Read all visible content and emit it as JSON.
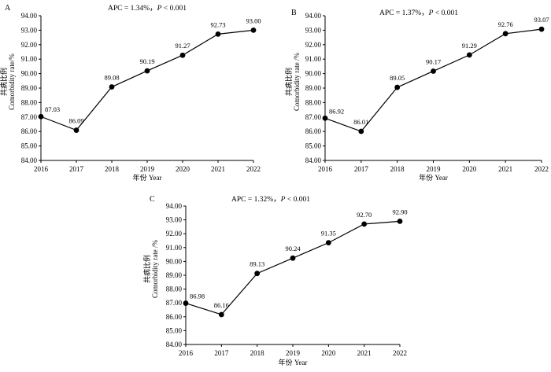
{
  "chart_data": [
    {
      "type": "line",
      "panel_label": "A",
      "title": "APC = 1.34%，",
      "title_p": "P",
      "title_tail": " < 0.001",
      "x": [
        "2016",
        "2017",
        "2018",
        "2019",
        "2020",
        "2021",
        "2022"
      ],
      "values": [
        87.03,
        86.09,
        89.08,
        90.19,
        91.27,
        92.73,
        93.0
      ],
      "value_labels": [
        "87.03",
        "86.09",
        "89.08",
        "90.19",
        "91.27",
        "92.73",
        "93.00"
      ],
      "ylim": [
        84.0,
        94.0
      ],
      "yticks": [
        "84.00",
        "85.00",
        "86.00",
        "87.00",
        "88.00",
        "89.00",
        "90.00",
        "91.00",
        "92.00",
        "93.00",
        "94.00"
      ],
      "xlabel": "年份 Year",
      "ylabel_cn": "共病比例",
      "ylabel_en": "Comorbidity rate/%",
      "grid": false,
      "marker": "circle"
    },
    {
      "type": "line",
      "panel_label": "B",
      "title": "APC = 1.37%，",
      "title_p": "P",
      "title_tail": " < 0.001",
      "x": [
        "2016",
        "2017",
        "2018",
        "2019",
        "2020",
        "2021",
        "2022"
      ],
      "values": [
        86.92,
        86.01,
        89.05,
        90.17,
        91.29,
        92.76,
        93.07
      ],
      "value_labels": [
        "86.92",
        "86.01",
        "89.05",
        "90.17",
        "91.29",
        "92.76",
        "93.07"
      ],
      "ylim": [
        84.0,
        94.0
      ],
      "yticks": [
        "84.00",
        "85.00",
        "86.00",
        "87.00",
        "88.00",
        "89.00",
        "90.00",
        "91.00",
        "92.00",
        "93.00",
        "94.00"
      ],
      "xlabel": "年份 Year",
      "ylabel_cn": "共病比例",
      "ylabel_en": "Comorbidity rate /%",
      "grid": false,
      "marker": "circle"
    },
    {
      "type": "line",
      "panel_label": "C",
      "title": "APC = 1.32%，",
      "title_p": "P",
      "title_tail": " < 0.001",
      "x": [
        "2016",
        "2017",
        "2018",
        "2019",
        "2020",
        "2021",
        "2022"
      ],
      "values": [
        86.98,
        86.16,
        89.13,
        90.24,
        91.35,
        92.7,
        92.9
      ],
      "value_labels": [
        "86.98",
        "86.16",
        "89.13",
        "90.24",
        "91.35",
        "92.70",
        "92.90"
      ],
      "ylim": [
        84.0,
        94.0
      ],
      "yticks": [
        "84.00",
        "85.00",
        "86.00",
        "87.00",
        "88.00",
        "89.00",
        "90.00",
        "91.00",
        "92.00",
        "93.00",
        "94.00"
      ],
      "xlabel": "年份 Year",
      "ylabel_cn": "共病比例",
      "ylabel_en": "Comorbidity rate /%",
      "grid": false,
      "marker": "circle"
    }
  ]
}
